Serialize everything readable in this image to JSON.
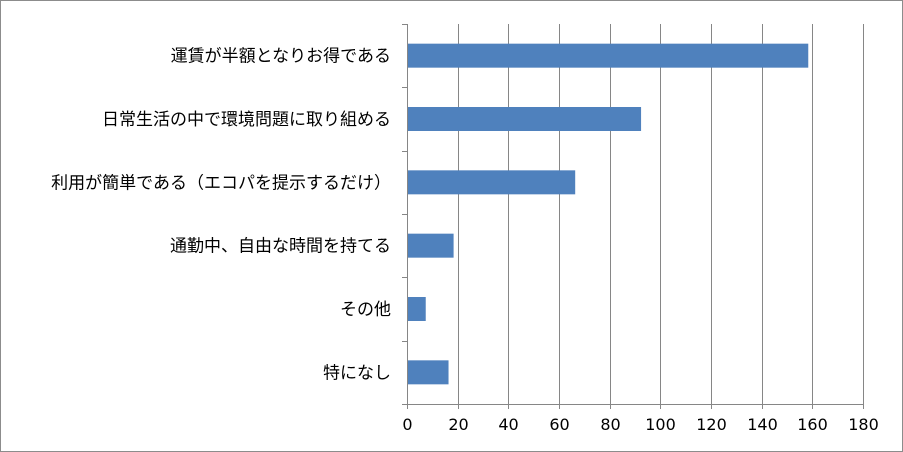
{
  "chart_data": {
    "type": "bar",
    "orientation": "horizontal",
    "categories": [
      "運賃が半額となりお得である",
      "日常生活の中で環境問題に取り組める",
      "利用が簡単である（エコパを提示するだけ）",
      "通勤中、自由な時間を持てる",
      "その他",
      "特になし"
    ],
    "values": [
      158,
      92,
      66,
      18,
      7,
      16
    ],
    "xlim": [
      0,
      180
    ],
    "xticks": [
      0,
      20,
      40,
      60,
      80,
      100,
      120,
      140,
      160,
      180
    ],
    "grid": "vertical",
    "bar_color": "#4f81bd",
    "title": "",
    "xlabel": "",
    "ylabel": ""
  }
}
